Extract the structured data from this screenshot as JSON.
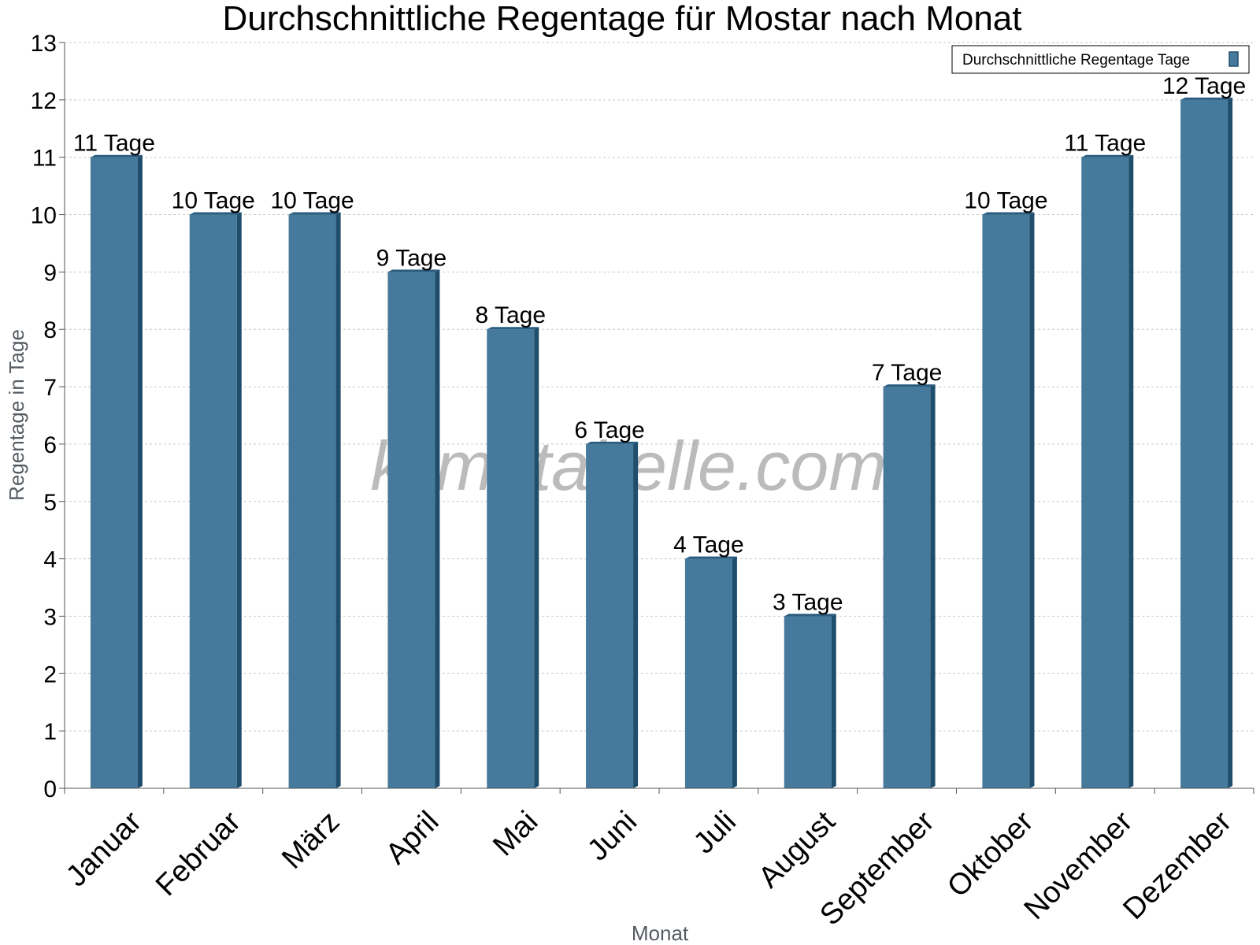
{
  "chart_data": {
    "type": "bar",
    "title": "Durchschnittliche Regentage für Mostar nach Monat",
    "xlabel": "Monat",
    "ylabel": "Regentage in Tage",
    "ylim": [
      0,
      13
    ],
    "yticks": [
      "0",
      "1",
      "2",
      "3",
      "4",
      "5",
      "6",
      "7",
      "8",
      "9",
      "10",
      "11",
      "12",
      "13"
    ],
    "grid": true,
    "legend_position": "top-right",
    "categories": [
      "Januar",
      "Februar",
      "März",
      "April",
      "Mai",
      "Juni",
      "Juli",
      "August",
      "September",
      "Oktober",
      "November",
      "Dezember"
    ],
    "series": [
      {
        "name": "Durchschnittliche Regentage Tage",
        "values": [
          11,
          10,
          10,
          9,
          8,
          6,
          4,
          3,
          7,
          10,
          11,
          12
        ],
        "labels": [
          "11 Tage",
          "10 Tage",
          "10 Tage",
          "9 Tage",
          "8 Tage",
          "6 Tage",
          "4 Tage",
          "3 Tage",
          "7 Tage",
          "10 Tage",
          "11 Tage",
          "12 Tage"
        ],
        "color": "#467a9c",
        "side_color": "#1f4e6d",
        "top_color": "#2a5c80"
      }
    ]
  },
  "watermark": "klimatabelle.com"
}
